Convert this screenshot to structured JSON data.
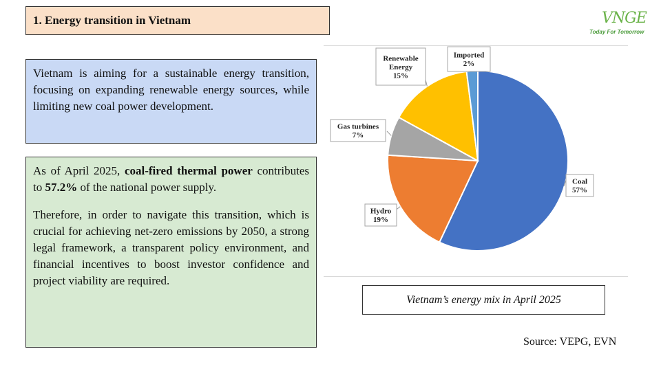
{
  "slide": {
    "title": "1. Energy transition in Vietnam",
    "logo": {
      "mark": "VNGE",
      "tagline": "Today For Tomorrow",
      "accent": "#6bb34a"
    },
    "intro_text": "Vietnam is aiming for a sustainable energy transition, focusing on expanding renewable energy sources, while limiting new coal power development.",
    "fact": {
      "prefix": "As of April 2025, ",
      "bold_subject": "coal-fired thermal power",
      "middle": " contributes to ",
      "bold_value": "57.2%",
      "suffix": " of the national power supply."
    },
    "conclusion": "Therefore, in order to navigate this transition, which is crucial for achieving net-zero emissions by 2050, a strong legal framework, a transparent policy environment, and financial incentives to boost investor confidence and project viability are required.",
    "caption": "Vietnam’s energy mix in April 2025",
    "source": "Source: VEPG, EVN",
    "colors": {
      "intro_bg": "#c9d9f5",
      "fact_bg": "#d7ead2",
      "title_bg": "#fbe0c8"
    }
  },
  "chart_data": {
    "type": "pie",
    "title": "",
    "slices": [
      {
        "name": "Coal",
        "label": "Coal",
        "pct_label": "57%",
        "value": 57,
        "color": "#4472c4"
      },
      {
        "name": "Hydro",
        "label": "Hydro",
        "pct_label": "19%",
        "value": 19,
        "color": "#ed7d31"
      },
      {
        "name": "Gas turbines",
        "label": "Gas turbines",
        "pct_label": "7%",
        "value": 7,
        "color": "#a5a5a5"
      },
      {
        "name": "Renewable Energy",
        "label": "Renewable Energy",
        "pct_label": "15%",
        "value": 15,
        "color": "#ffc000"
      },
      {
        "name": "Imported",
        "label": "Imported",
        "pct_label": "2%",
        "value": 2,
        "color": "#5b9bd5"
      }
    ]
  }
}
